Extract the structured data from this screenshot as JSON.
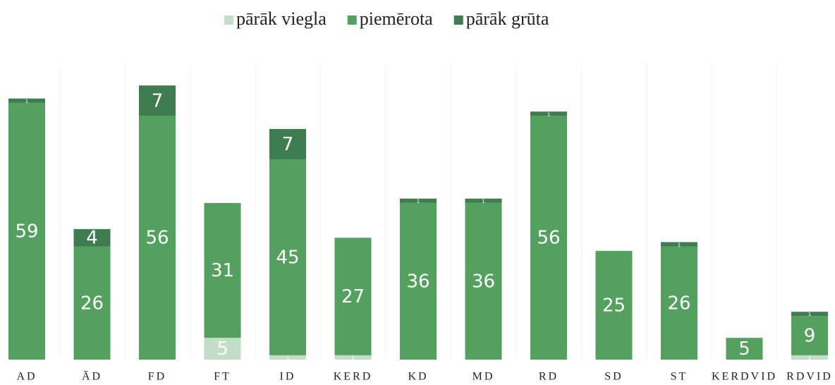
{
  "chart_data": {
    "type": "stacked_bar",
    "categories": [
      "AD",
      "ĀD",
      "FD",
      "FT",
      "ID",
      "KERD",
      "KD",
      "MD",
      "RD",
      "SD",
      "ST",
      "KERDVID",
      "RDVID"
    ],
    "series": [
      {
        "name": "pārāk viegla",
        "color": "#c3dec8",
        "values": [
          null,
          null,
          null,
          5,
          1,
          1,
          null,
          null,
          null,
          null,
          null,
          null,
          1
        ]
      },
      {
        "name": "piemērota",
        "color": "#54a05f",
        "values": [
          59,
          26,
          56,
          31,
          45,
          27,
          36,
          36,
          56,
          25,
          26,
          5,
          9
        ]
      },
      {
        "name": "pārāk grūta",
        "color": "#3f7c50",
        "values": [
          1,
          4,
          7,
          null,
          7,
          null,
          1,
          1,
          1,
          null,
          1,
          null,
          1
        ]
      }
    ],
    "ylim": [
      0,
      70
    ],
    "legend": "top"
  }
}
